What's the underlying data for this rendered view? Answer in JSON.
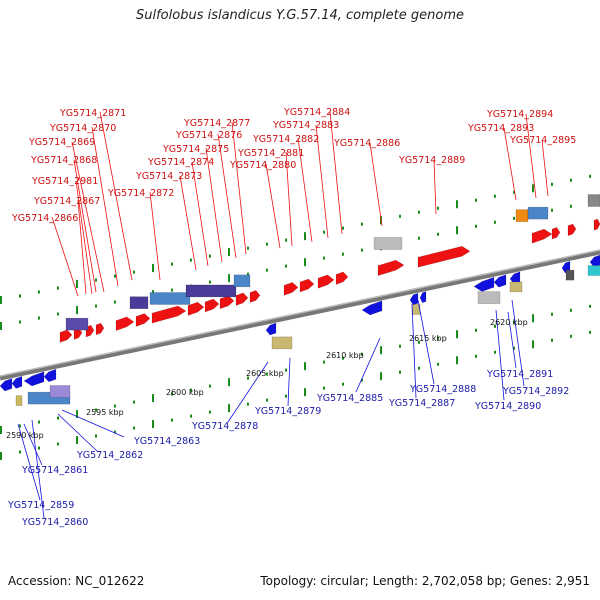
{
  "title": "Sulfolobus islandicus Y.G.57.14, complete genome",
  "footer": {
    "accession": "Accession: NC_012622",
    "summary": "Topology: circular; Length: 2,702,058 bp; Genes: 2,951"
  },
  "scale_labels": [
    "2590 kbp",
    "2595 kbp",
    "2600 kbp",
    "2605 kbp",
    "2610 kbp",
    "2615 kbp",
    "2620 kbp"
  ],
  "top_labels": [
    "YG5714_2871",
    "YG5714_2870",
    "YG5714_2869",
    "YG5714_2868",
    "YG5714_2981",
    "YG5714_2867",
    "YG5714_2866",
    "YG5714_2877",
    "YG5714_2876",
    "YG5714_2875",
    "YG5714_2874",
    "YG5714_2873",
    "YG5714_2872",
    "YG5714_2884",
    "YG5714_2883",
    "YG5714_2882",
    "YG5714_2881",
    "YG5714_2880",
    "YG5714_2886",
    "YG5714_2889",
    "YG5714_2894",
    "YG5714_2893",
    "YG5714_2895"
  ],
  "bottom_labels": [
    "YG5714_2885",
    "YG5714_2888",
    "YG5714_2887",
    "YG5714_2891",
    "YG5714_2892",
    "YG5714_2890",
    "YG5714_2878",
    "YG5714_2879",
    "YG5714_2863",
    "YG5714_2862",
    "YG5714_2861",
    "YG5714_2859",
    "YG5714_2860"
  ],
  "colors": {
    "forward_gene": "#ee1111",
    "reverse_gene": "#1111dd",
    "top_label": "#cc1111",
    "bottom_label": "#1a1aa8",
    "backbone": "#888888",
    "ticks": "#1a8a1a"
  }
}
